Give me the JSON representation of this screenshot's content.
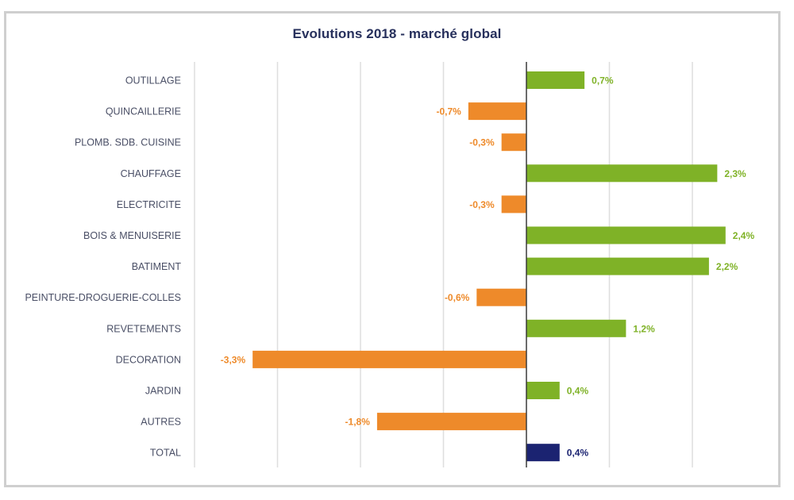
{
  "chart_data": {
    "type": "bar",
    "orientation": "horizontal",
    "title": "Evolutions 2018 - marché global",
    "xlabel": "",
    "ylabel": "",
    "xlim": [
      -4,
      3
    ],
    "grid": true,
    "grid_ticks": [
      -4,
      -3,
      -2,
      -1,
      0,
      1,
      2
    ],
    "legend": "none",
    "categories": [
      "OUTILLAGE",
      "QUINCAILLERIE",
      "PLOMB. SDB. CUISINE",
      "CHAUFFAGE",
      "ELECTRICITE",
      "BOIS & MENUISERIE",
      "BATIMENT",
      "PEINTURE-DROGUERIE-COLLES",
      "REVETEMENTS",
      "DECORATION",
      "JARDIN",
      "AUTRES",
      "TOTAL"
    ],
    "values": [
      0.7,
      -0.7,
      -0.3,
      2.3,
      -0.3,
      2.4,
      2.2,
      -0.6,
      1.2,
      -3.3,
      0.4,
      -1.8,
      0.4
    ],
    "data_labels": [
      "0,7%",
      "-0,7%",
      "-0,3%",
      "2,3%",
      "-0,3%",
      "2,4%",
      "2,2%",
      "-0,6%",
      "1,2%",
      "-3,3%",
      "0,4%",
      "-1,8%",
      "0,4%"
    ],
    "colors": {
      "positive": "#7fb227",
      "negative": "#ee8a2a",
      "total": "#1b2371",
      "grid": "#dedede",
      "axis": "#3a3a3a"
    }
  }
}
